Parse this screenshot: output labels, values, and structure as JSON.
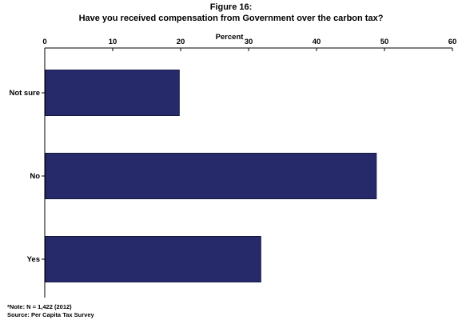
{
  "title_line1": "Figure 16:",
  "title_line2": "Have you received compensation from Government over the carbon tax?",
  "note": "*Note: N = 1,422 (2012)",
  "source": "Source: Per Capita Tax Survey",
  "colors": {
    "bar": "#262a6b",
    "bar_edge": "#15183f",
    "axis": "#000000"
  },
  "chart_data": {
    "type": "bar",
    "orientation": "horizontal",
    "title": "Have you received compensation from Government over the carbon tax?",
    "xlabel": "Percent",
    "ylabel": "",
    "categories": [
      "Not sure",
      "No",
      "Yes"
    ],
    "values": [
      19.8,
      48.8,
      31.8
    ],
    "xlim": [
      0,
      60
    ],
    "x_ticks": [
      0,
      10,
      20,
      30,
      40,
      50,
      60
    ],
    "x_axis_position": "top",
    "grid": false,
    "legend": "none"
  }
}
